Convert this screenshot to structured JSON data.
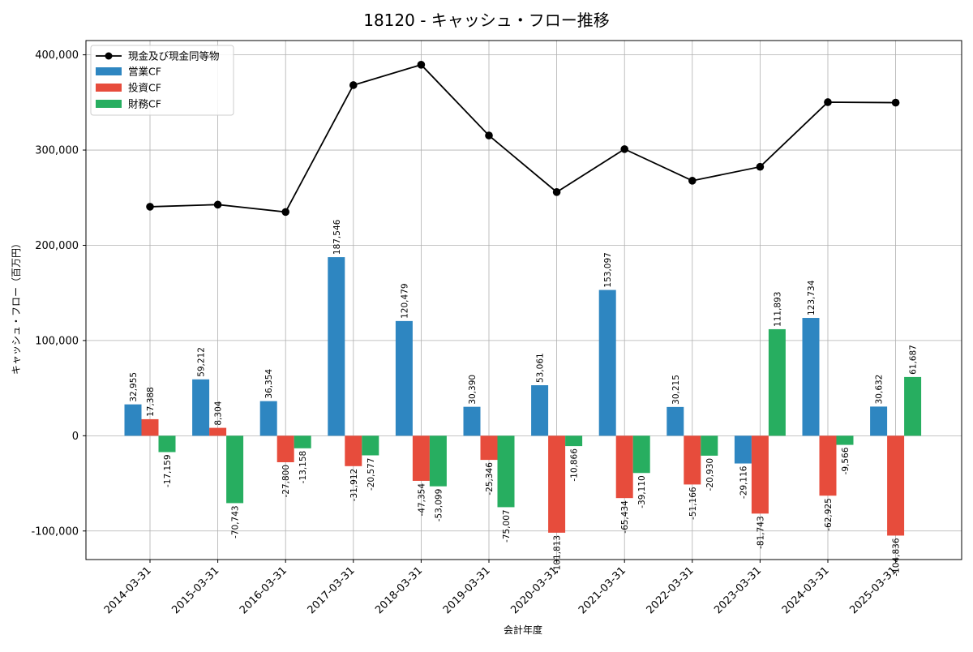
{
  "chart_data": {
    "type": "bar",
    "title": "18120 - キャッシュ・フロー推移",
    "xlabel": "会計年度",
    "ylabel": "キャッシュ・フロー（百万円）",
    "categories": [
      "2014-03-31",
      "2015-03-31",
      "2016-03-31",
      "2017-03-31",
      "2018-03-31",
      "2019-03-31",
      "2020-03-31",
      "2021-03-31",
      "2022-03-31",
      "2023-03-31",
      "2024-03-31",
      "2025-03-31"
    ],
    "ylim": [
      -130000,
      415000
    ],
    "yticks": [
      -100000,
      0,
      100000,
      200000,
      300000,
      400000
    ],
    "ytick_labels": [
      "-100,000",
      "0",
      "100,000",
      "200,000",
      "300,000",
      "400,000"
    ],
    "grid": true,
    "legend_position": "top-left",
    "line_series": {
      "name": "現金及び現金同等物",
      "color": "#000000",
      "values": [
        240500,
        242700,
        235000,
        368200,
        389600,
        315300,
        255900,
        301000,
        267800,
        282400,
        350300,
        349800
      ]
    },
    "series": [
      {
        "name": "営業CF",
        "color": "#2e86c1",
        "values": [
          32955,
          59212,
          36354,
          187546,
          120479,
          30390,
          53061,
          153097,
          30215,
          -29116,
          123734,
          30632
        ],
        "labels": [
          "32,955",
          "59,212",
          "36,354",
          "187,546",
          "120,479",
          "30,390",
          "53,061",
          "153,097",
          "30,215",
          "-29,116",
          "123,734",
          "30,632"
        ]
      },
      {
        "name": "投資CF",
        "color": "#e74c3c",
        "values": [
          17388,
          8304,
          -27800,
          -31912,
          -47354,
          -25346,
          -101813,
          -65434,
          -51166,
          -81743,
          -62925,
          -104836
        ],
        "labels": [
          "17,388",
          "8,304",
          "-27,800",
          "-31,912",
          "-47,354",
          "-25,346",
          "-101,813",
          "-65,434",
          "-51,166",
          "-81,743",
          "-62,925",
          "-104,836"
        ]
      },
      {
        "name": "財務CF",
        "color": "#27ae60",
        "values": [
          -17159,
          -70743,
          -13158,
          -20577,
          -53099,
          -75007,
          -10866,
          -39110,
          -20930,
          111893,
          -9566,
          61687
        ],
        "labels": [
          "-17,159",
          "-70,743",
          "-13,158",
          "-20,577",
          "-53,099",
          "-75,007",
          "-10,866",
          "-39,110",
          "-20,930",
          "111,893",
          "-9,566",
          "61,687"
        ]
      }
    ]
  }
}
